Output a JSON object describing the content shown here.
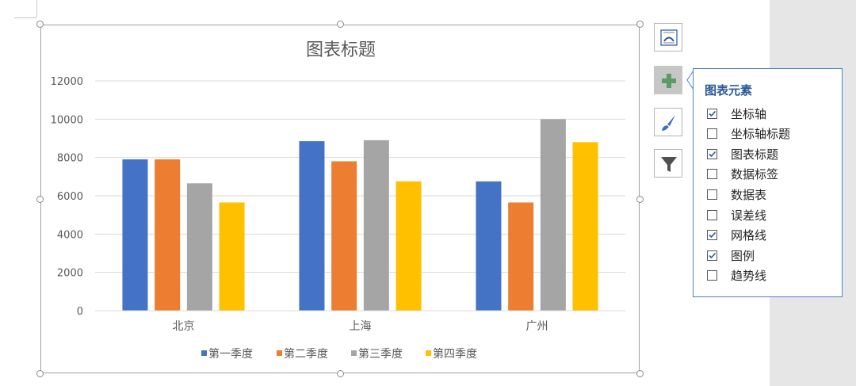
{
  "chart_data": {
    "type": "bar",
    "title": "图表标题",
    "categories": [
      "北京",
      "上海",
      "广州"
    ],
    "series": [
      {
        "name": "第一季度",
        "color": "#4472C4",
        "values": [
          7900,
          8850,
          6750
        ]
      },
      {
        "name": "第二季度",
        "color": "#ED7D31",
        "values": [
          7900,
          7800,
          5650
        ]
      },
      {
        "name": "第三季度",
        "color": "#A5A5A5",
        "values": [
          6650,
          8900,
          10000
        ]
      },
      {
        "name": "第四季度",
        "color": "#FFC000",
        "values": [
          5650,
          6750,
          8800
        ]
      }
    ],
    "ylim": [
      0,
      12000
    ],
    "yticks": [
      "0",
      "2000",
      "4000",
      "6000",
      "8000",
      "10000",
      "12000"
    ],
    "grid": true,
    "legend_position": "bottom"
  },
  "side_buttons": [
    {
      "name": "chart-styles-button",
      "icon": "chart-style-icon",
      "active": false
    },
    {
      "name": "chart-elements-button",
      "icon": "plus-icon",
      "active": true
    },
    {
      "name": "chart-brush-button",
      "icon": "brush-icon",
      "active": false
    },
    {
      "name": "chart-filter-button",
      "icon": "filter-icon",
      "active": false
    }
  ],
  "elements_popup": {
    "title": "图表元素",
    "options": [
      {
        "label": "坐标轴",
        "checked": true
      },
      {
        "label": "坐标轴标题",
        "checked": false
      },
      {
        "label": "图表标题",
        "checked": true
      },
      {
        "label": "数据标签",
        "checked": false
      },
      {
        "label": "数据表",
        "checked": false
      },
      {
        "label": "误差线",
        "checked": false
      },
      {
        "label": "网格线",
        "checked": true
      },
      {
        "label": "图例",
        "checked": true
      },
      {
        "label": "趋势线",
        "checked": false
      }
    ]
  },
  "colors": {
    "accent": "#2b579a",
    "popup_border": "#4a7fcf",
    "active_button": "#c6c6c6"
  }
}
